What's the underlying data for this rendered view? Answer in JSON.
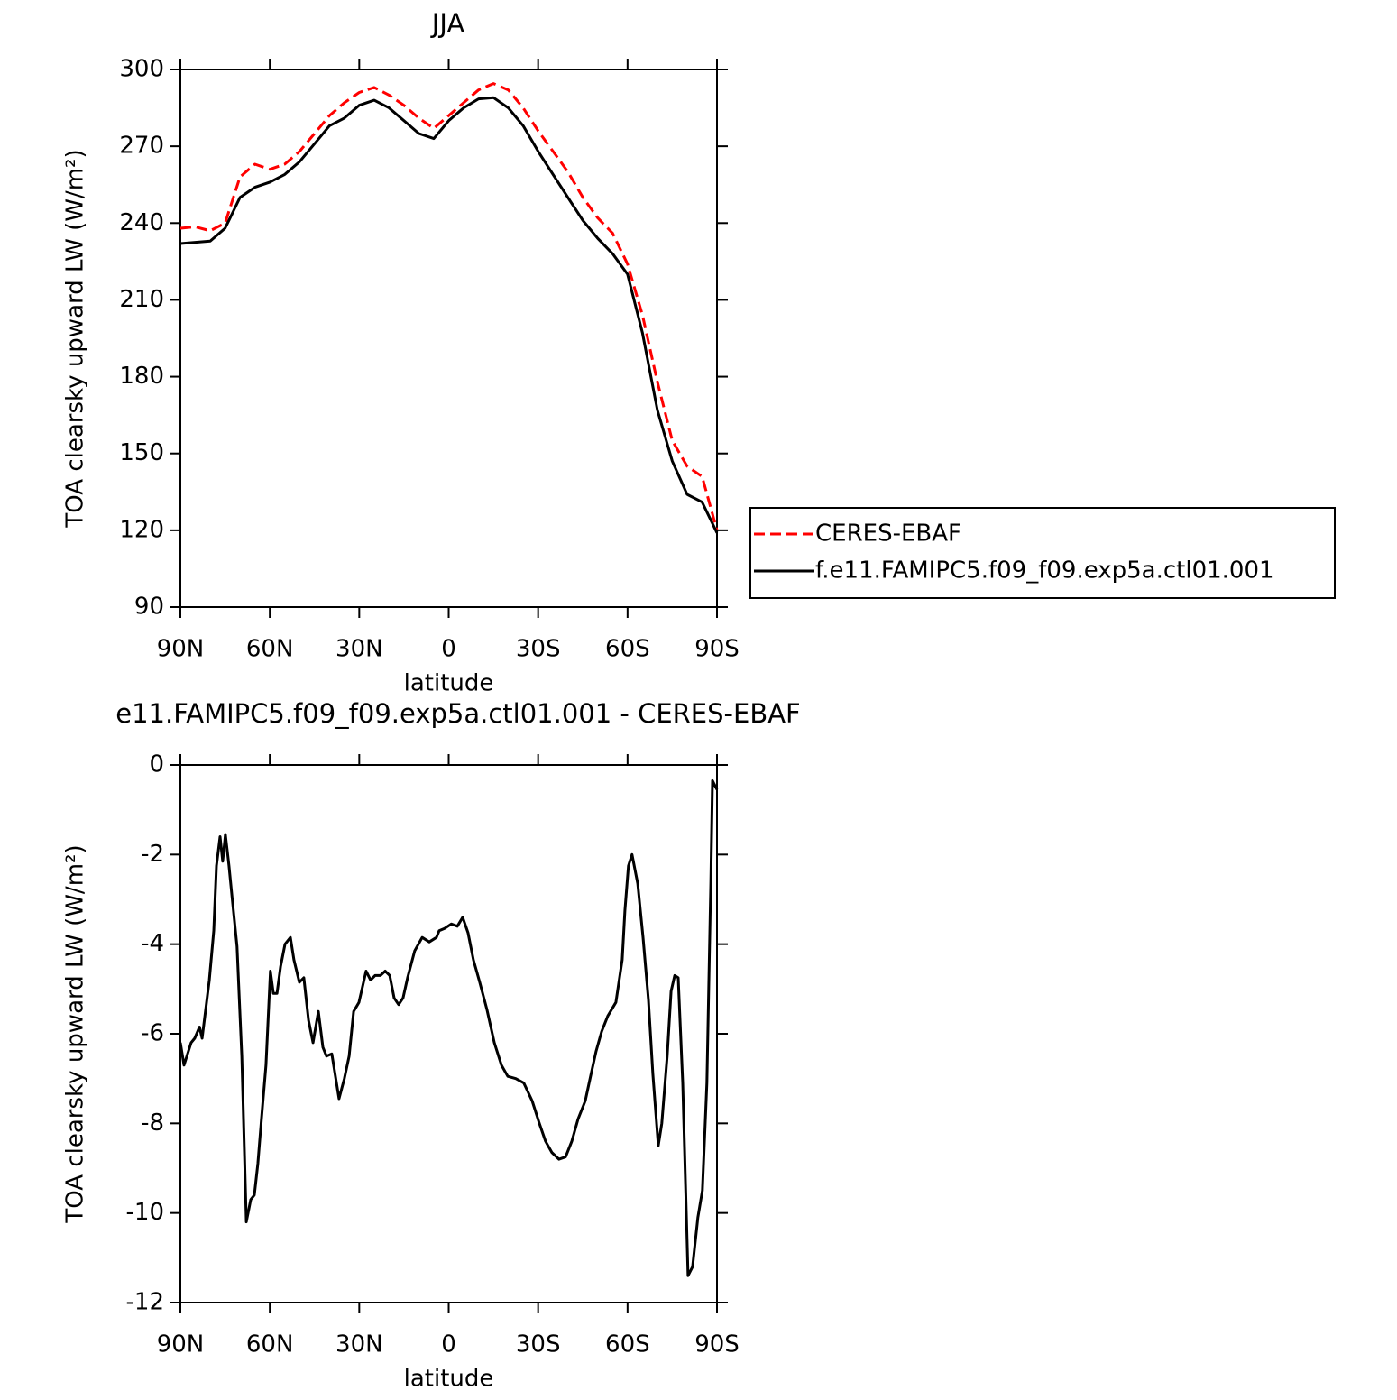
{
  "chart_data": [
    {
      "type": "line",
      "title": "JJA",
      "x_label": "latitude",
      "y_label": "TOA clearsky upward LW (W/m²)",
      "x": [
        90,
        85,
        80,
        75,
        70,
        65,
        60,
        55,
        50,
        45,
        40,
        35,
        30,
        25,
        20,
        15,
        10,
        5,
        0,
        -5,
        -10,
        -15,
        -20,
        -25,
        -30,
        -35,
        -40,
        -45,
        -50,
        -55,
        -60,
        -65,
        -70,
        -75,
        -80,
        -85,
        -90
      ],
      "series": [
        {
          "name": "CERES-EBAF",
          "color": "#ff0000",
          "style": "dashed",
          "values": [
            238,
            238.5,
            237,
            240,
            258,
            263,
            261,
            263,
            268,
            275,
            282,
            287,
            291,
            293,
            290,
            286,
            281,
            277,
            282,
            287,
            292,
            294.5,
            292,
            285,
            276,
            268,
            260,
            250,
            242,
            236,
            224,
            204,
            178,
            155,
            145,
            141,
            120
          ]
        },
        {
          "name": "f.e11.FAMIPC5.f09_f09.exp5a.ctl01.001",
          "color": "#000000",
          "style": "solid",
          "values": [
            232,
            232.5,
            233,
            238,
            250,
            254,
            256,
            259,
            264,
            271,
            278,
            281,
            286,
            288,
            285,
            280,
            275,
            273,
            280,
            285,
            288.5,
            289,
            285,
            278,
            268,
            259,
            250,
            241,
            234,
            228,
            220,
            197,
            167,
            147,
            134,
            131,
            119
          ]
        }
      ],
      "xlim": [
        90,
        -90
      ],
      "xticks": [
        {
          "value": 90,
          "label": "90N"
        },
        {
          "value": 60,
          "label": "60N"
        },
        {
          "value": 30,
          "label": "30N"
        },
        0,
        {
          "value": -30,
          "label": "30S"
        },
        {
          "value": -60,
          "label": "60S"
        },
        {
          "value": -90,
          "label": "90S"
        }
      ],
      "ylim": [
        90,
        300
      ],
      "yticks": [
        90,
        120,
        150,
        180,
        210,
        240,
        270,
        300
      ],
      "legend": "right"
    },
    {
      "type": "line",
      "title": "e11.FAMIPC5.f09_f09.exp5a.ctl01.001 - CERES-EBAF",
      "x_label": "latitude",
      "y_label": "TOA clearsky upward LW (W/m²)",
      "x": [
        90,
        88.8,
        86.4,
        85.2,
        83.6,
        82.7,
        80.3,
        78.8,
        77.9,
        76.7,
        75.8,
        74.9,
        73.7,
        72.5,
        71,
        69.4,
        67.9,
        66.4,
        65.2,
        64,
        62.8,
        61.3,
        59.8,
        58.8,
        57.6,
        56.4,
        54.9,
        53.1,
        51.9,
        50.1,
        48.6,
        47,
        45.5,
        43.7,
        42.2,
        41,
        39.2,
        36.8,
        35,
        33.4,
        31.9,
        30.1,
        27.7,
        26.2,
        24.7,
        22.9,
        21.3,
        19.8,
        18.3,
        16.8,
        15.3,
        13.8,
        11.4,
        8.9,
        6.5,
        4.1,
        3.2,
        1.4,
        -0.9,
        -2.9,
        -4.7,
        -6.5,
        -8.3,
        -10.4,
        -12.8,
        -15.3,
        -17.7,
        -19.8,
        -22.5,
        -25.2,
        -28,
        -30.4,
        -32.5,
        -34.6,
        -37,
        -39.2,
        -41.3,
        -43.4,
        -45.8,
        -47.6,
        -49.4,
        -51.3,
        -53.4,
        -56.1,
        -58.2,
        -59.1,
        -60.3,
        -61.5,
        -63.4,
        -65.2,
        -67,
        -68.5,
        -70.3,
        -71.5,
        -73.3,
        -74.6,
        -75.8,
        -77,
        -78.5,
        -80.3,
        -81.8,
        -83.6,
        -85.1,
        -86.6,
        -87.9,
        -88.5,
        -90
      ],
      "color": "#000000",
      "values": [
        -6.2,
        -6.7,
        -6.2,
        -6.1,
        -5.85,
        -6.1,
        -4.8,
        -3.7,
        -2.25,
        -1.6,
        -2.15,
        -1.55,
        -2.25,
        -3.05,
        -4.05,
        -6.5,
        -10.2,
        -9.7,
        -9.6,
        -8.9,
        -7.9,
        -6.7,
        -4.6,
        -5.1,
        -5.1,
        -4.5,
        -4,
        -3.85,
        -4.35,
        -4.85,
        -4.75,
        -5.7,
        -6.2,
        -5.5,
        -6.3,
        -6.5,
        -6.45,
        -7.45,
        -7,
        -6.5,
        -5.5,
        -5.3,
        -4.6,
        -4.8,
        -4.7,
        -4.7,
        -4.6,
        -4.7,
        -5.2,
        -5.35,
        -5.2,
        -4.75,
        -4.15,
        -3.85,
        -3.95,
        -3.85,
        -3.7,
        -3.65,
        -3.55,
        -3.6,
        -3.4,
        -3.75,
        -4.35,
        -4.85,
        -5.45,
        -6.2,
        -6.7,
        -6.95,
        -7,
        -7.1,
        -7.5,
        -8,
        -8.4,
        -8.65,
        -8.8,
        -8.75,
        -8.4,
        -7.9,
        -7.5,
        -6.95,
        -6.4,
        -5.95,
        -5.6,
        -5.3,
        -4.35,
        -3.25,
        -2.25,
        -2,
        -2.65,
        -3.85,
        -5.25,
        -6.9,
        -8.5,
        -8,
        -6.5,
        -5.05,
        -4.7,
        -4.75,
        -7.1,
        -11.4,
        -11.2,
        -10.1,
        -9.5,
        -7.1,
        -2.65,
        -0.35,
        -0.55
      ],
      "xlim": [
        90,
        -90
      ],
      "xticks": [
        {
          "value": 90,
          "label": "90N"
        },
        {
          "value": 60,
          "label": "60N"
        },
        {
          "value": 30,
          "label": "30N"
        },
        0,
        {
          "value": -30,
          "label": "30S"
        },
        {
          "value": -60,
          "label": "60S"
        },
        {
          "value": -90,
          "label": "90S"
        }
      ],
      "ylim": [
        -12,
        0
      ],
      "yticks": [
        -12,
        -10,
        -8,
        -6,
        -4,
        -2,
        0
      ]
    }
  ]
}
